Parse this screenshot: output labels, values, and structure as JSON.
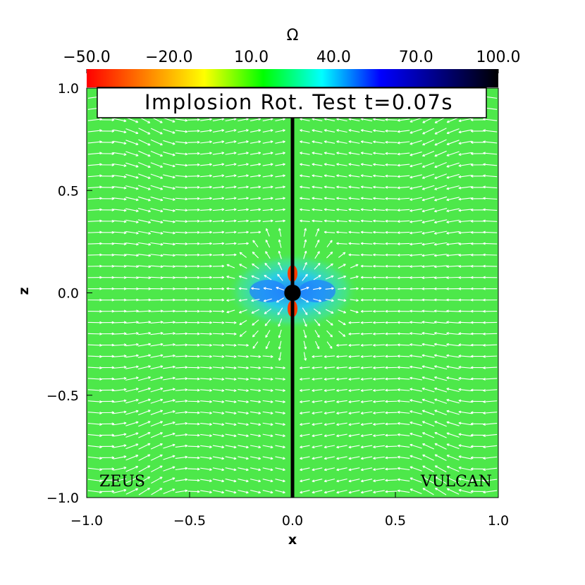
{
  "chart_data": {
    "type": "heatmap",
    "title": "Implosion Rot. Test t=0.07s",
    "xlabel": "x",
    "ylabel": "z",
    "xlim": [
      -1.0,
      1.0
    ],
    "ylim": [
      -1.0,
      1.0
    ],
    "x_ticks": [
      "−1.0",
      "−0.5",
      "0.0",
      "0.5",
      "1.0"
    ],
    "y_ticks": [
      "−1.0",
      "−0.5",
      "0.0",
      "0.5",
      "1.0"
    ],
    "x_tick_values": [
      -1.0,
      -0.5,
      0.0,
      0.5,
      1.0
    ],
    "y_tick_values": [
      -1.0,
      -0.5,
      0.0,
      0.5,
      1.0
    ],
    "colorbar": {
      "label": "Ω",
      "range": [
        -50,
        100
      ],
      "ticks": [
        "−50.0",
        "−20.0",
        "10.0",
        "40.0",
        "70.0",
        "100.0"
      ],
      "tick_values": [
        -50,
        -20,
        10,
        40,
        70,
        100
      ],
      "colormap": [
        "#ff0000",
        "#ff8000",
        "#ffff00",
        "#00ff00",
        "#00ffff",
        "#0000ff",
        "#000080",
        "#000000"
      ]
    },
    "background_value": 10,
    "background_color": "#4de84a",
    "central_object": {
      "x": 0.0,
      "z": 0.0,
      "radius": 0.04,
      "color": "#000000"
    },
    "divider_x": 0.0,
    "panel_labels": [
      "ZEUS",
      "VULCAN"
    ],
    "vector_color": "#ffffff",
    "grid": false
  }
}
